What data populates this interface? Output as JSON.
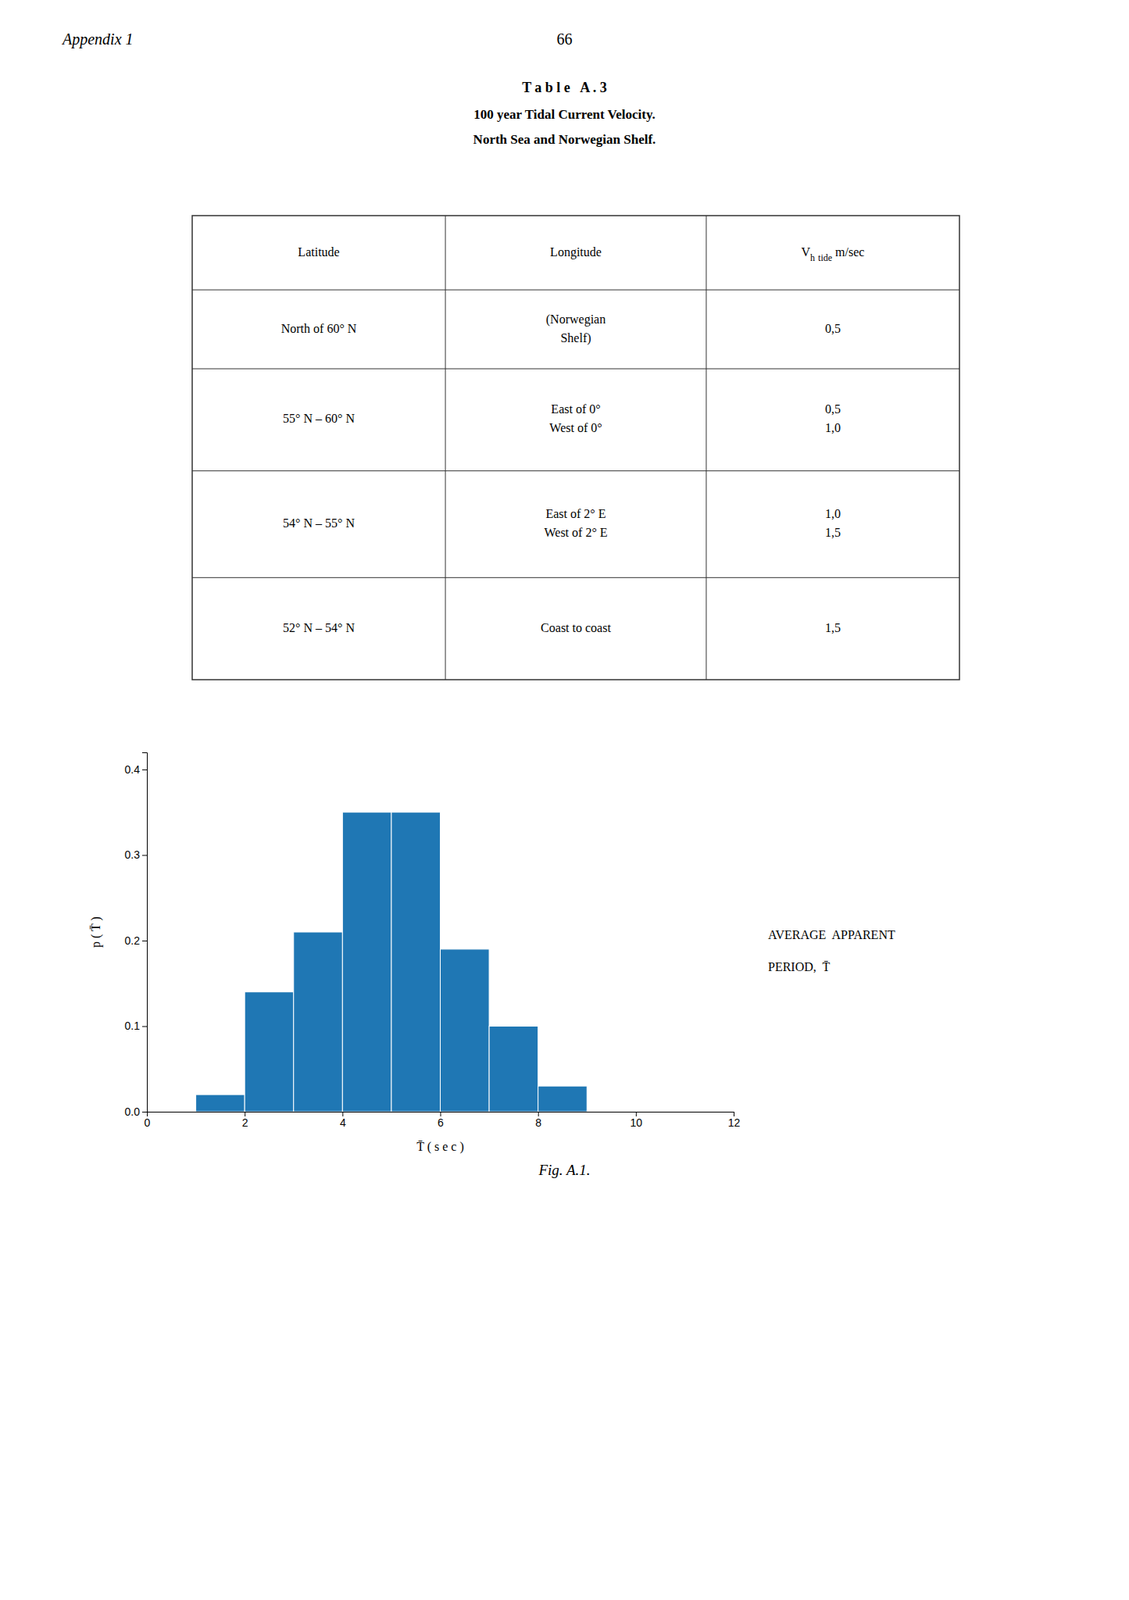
{
  "page": {
    "title_left": "Appendix 1",
    "page_number": "66",
    "caption": "Fig. A.1."
  },
  "table": {
    "title_lines": [
      "T a b l e   A . 3",
      "100 year Tidal Current Velocity.",
      "North Sea and Norwegian Shelf."
    ],
    "columns": [
      {
        "parts": [
          {
            "text": "Latitude"
          }
        ]
      },
      {
        "parts": [
          {
            "text": "Longitude"
          }
        ]
      },
      {
        "parts": [
          {
            "text": "V"
          },
          {
            "text": "h",
            "sub": true
          },
          {
            "text": " "
          },
          {
            "text": "tide",
            "sub": true
          },
          {
            "text": " m/sec"
          }
        ]
      }
    ],
    "rows": [
      [
        "North of 60° N",
        "(Norwegian\nShelf)",
        "0,5"
      ],
      [
        "55° N – 60° N",
        "East of 0°\nWest of 0°",
        "0,5\n1,0"
      ],
      [
        "54° N – 55° N",
        "East of 2° E\nWest of 2° E",
        "1,0\n1,5"
      ],
      [
        "52° N – 54° N",
        "Coast to coast",
        "1,5"
      ]
    ]
  },
  "chart_data": {
    "type": "histogram",
    "bins": [
      1,
      2,
      3,
      4,
      5,
      6,
      7,
      8,
      9
    ],
    "values": [
      0.02,
      0.14,
      0.21,
      0.35,
      0.35,
      0.19,
      0.1,
      0.03
    ],
    "x_label": "T̄ ( s e c )",
    "y_label": "p ( T̄ )",
    "annotations": [
      "AVERAGE  APPARENT",
      "PERIOD,  T̄"
    ],
    "xlim": [
      0,
      12
    ],
    "ylim": [
      0,
      0.42
    ],
    "xticks": [
      0,
      2,
      4,
      6,
      8,
      10,
      12
    ],
    "yticks": [
      {
        "value": 0,
        "label": "0.0"
      },
      0.1,
      0.2,
      0.3,
      0.4
    ]
  }
}
